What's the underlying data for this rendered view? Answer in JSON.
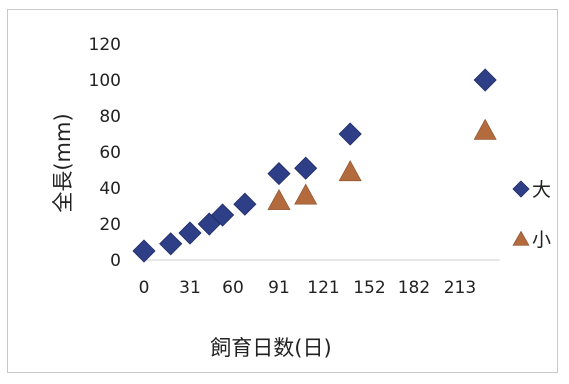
{
  "chart_data": {
    "type": "scatter",
    "xlabel": "飼育日数(日)",
    "ylabel": "全長(mm)",
    "xlim": [
      0,
      240
    ],
    "ylim": [
      0,
      120
    ],
    "x_ticks": [
      0,
      31,
      60,
      91,
      121,
      152,
      182,
      213
    ],
    "y_ticks": [
      0,
      20,
      40,
      60,
      80,
      100,
      120
    ],
    "grid": false,
    "legend_position": "right",
    "series": [
      {
        "name": "大",
        "marker": "diamond",
        "color": "#2e3f87",
        "points": [
          {
            "x": 0,
            "y": 5
          },
          {
            "x": 18,
            "y": 9
          },
          {
            "x": 31,
            "y": 15
          },
          {
            "x": 44,
            "y": 20
          },
          {
            "x": 53,
            "y": 25
          },
          {
            "x": 68,
            "y": 31
          },
          {
            "x": 91,
            "y": 48
          },
          {
            "x": 109,
            "y": 51
          },
          {
            "x": 139,
            "y": 70
          },
          {
            "x": 230,
            "y": 100
          }
        ]
      },
      {
        "name": "小",
        "marker": "triangle",
        "color": "#b36b3d",
        "points": [
          {
            "x": 91,
            "y": 33
          },
          {
            "x": 109,
            "y": 36
          },
          {
            "x": 139,
            "y": 49
          },
          {
            "x": 230,
            "y": 72
          }
        ]
      }
    ]
  }
}
